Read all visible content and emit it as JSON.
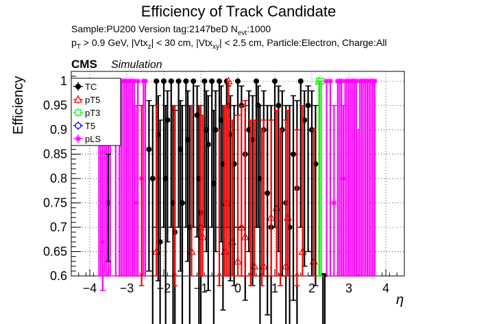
{
  "title": "Efficiency of Track Candidate",
  "subtitle": {
    "line1_main": "Sample:PU200   Version tag:2147beD  N",
    "line1_sub": "evt",
    "line1_tail": ":1000",
    "line2_p": "p",
    "line2_T": "T",
    "line2_a": " > 0.9 GeV, |Vtx",
    "line2_z": "z",
    "line2_b": "| < 30 cm, |Vtx",
    "line2_xy": "xy",
    "line2_c": "| < 2.5 cm, Particle:Electron, Charge:All"
  },
  "cms_label": "CMS",
  "sim_label": "Simulation",
  "chart_data": {
    "type": "scatter",
    "xlabel": "η",
    "ylabel": "Efficiency",
    "xlim": [
      -4.5,
      4.5
    ],
    "ylim": [
      0.6,
      1.02
    ],
    "xticks": [
      -4,
      -3,
      -2,
      -1,
      0,
      1,
      2,
      3,
      4
    ],
    "yticks": [
      0.6,
      0.65,
      0.7,
      0.75,
      0.8,
      0.85,
      0.9,
      0.95,
      1
    ],
    "grid": true,
    "legend_position": "top-left",
    "colors": {
      "TC": "#000000",
      "pT5": "#ff0000",
      "pT3": "#00ff00",
      "T5": "#0000ff",
      "pLS": "#ff00ff"
    },
    "series": [
      {
        "name": "TC",
        "marker": "filled-circle",
        "x": [
          -3.5,
          -2.4,
          -2.3,
          -2.2,
          -2.15,
          -2.1,
          -2.0,
          -1.95,
          -1.9,
          -1.8,
          -1.75,
          -1.7,
          -1.6,
          -1.55,
          -1.5,
          -1.4,
          -1.35,
          -1.3,
          -1.2,
          -1.1,
          -1.05,
          -1.0,
          -0.9,
          -0.85,
          -0.8,
          -0.7,
          -0.65,
          -0.6,
          -0.5,
          -0.45,
          -0.4,
          -0.3,
          -0.25,
          -0.2,
          -0.1,
          0.0,
          0.1,
          0.2,
          0.3,
          0.4,
          0.5,
          0.55,
          0.6,
          0.7,
          0.8,
          0.9,
          1.0,
          1.1,
          1.2,
          1.3,
          1.4,
          1.5,
          1.6,
          1.7,
          1.8,
          1.9,
          2.0,
          2.1,
          2.3,
          2.35
        ],
        "y": [
          0.75,
          0.86,
          0.8,
          1.0,
          0.89,
          0.67,
          1.0,
          0.8,
          0.92,
          1.0,
          0.75,
          0.69,
          1.0,
          0.86,
          0.75,
          1.0,
          0.88,
          0.7,
          1.0,
          0.93,
          0.8,
          0.73,
          1.0,
          0.9,
          0.87,
          1.0,
          0.79,
          0.9,
          1.0,
          0.92,
          0.83,
          1.0,
          0.95,
          0.89,
          0.83,
          1.0,
          0.95,
          0.85,
          0.9,
          0.88,
          1.0,
          0.95,
          0.8,
          0.9,
          0.77,
          0.7,
          1.0,
          0.95,
          0.9,
          0.75,
          0.7,
          0.85,
          0.78,
          1.0,
          0.92,
          0.95,
          0.9,
          0.83,
          0.6,
          0.6
        ],
        "err_lo": [
          0.12,
          0.25,
          0.3,
          0.3,
          0.3,
          0.2,
          0.3,
          0.3,
          0.25,
          0.3,
          0.3,
          0.2,
          0.3,
          0.25,
          0.3,
          0.3,
          0.25,
          0.2,
          0.3,
          0.25,
          0.3,
          0.25,
          0.3,
          0.25,
          0.3,
          0.3,
          0.3,
          0.25,
          0.3,
          0.25,
          0.3,
          0.3,
          0.25,
          0.3,
          0.25,
          0.3,
          0.25,
          0.3,
          0.25,
          0.3,
          0.3,
          0.25,
          0.3,
          0.3,
          0.25,
          0.2,
          0.3,
          0.3,
          0.3,
          0.25,
          0.2,
          0.3,
          0.3,
          0.3,
          0.3,
          0.3,
          0.3,
          0.25,
          0.1,
          0.1
        ],
        "err_hi": [
          0.1,
          0.1,
          0.15,
          0.0,
          0.08,
          0.25,
          0.0,
          0.15,
          0.06,
          0.0,
          0.2,
          0.25,
          0.0,
          0.1,
          0.2,
          0.0,
          0.1,
          0.25,
          0.0,
          0.06,
          0.15,
          0.2,
          0.0,
          0.08,
          0.1,
          0.0,
          0.15,
          0.08,
          0.0,
          0.07,
          0.12,
          0.0,
          0.04,
          0.08,
          0.12,
          0.0,
          0.04,
          0.1,
          0.08,
          0.09,
          0.0,
          0.04,
          0.15,
          0.08,
          0.18,
          0.25,
          0.0,
          0.04,
          0.08,
          0.2,
          0.25,
          0.12,
          0.18,
          0.0,
          0.06,
          0.04,
          0.08,
          0.12,
          0.0,
          0.0
        ]
      },
      {
        "name": "pT5",
        "marker": "open-triangle",
        "x": [
          -2.6,
          -2.2,
          -1.7,
          -1.25,
          -1.0,
          -0.95,
          -0.5,
          -0.35,
          -0.3,
          -0.25,
          -0.15,
          0.0,
          0.1,
          0.2,
          0.35,
          0.45,
          0.65,
          0.7,
          0.9,
          1.05,
          1.15,
          1.3,
          1.35,
          1.6,
          1.75,
          2.05,
          2.2
        ],
        "y": [
          0.6,
          0.65,
          0.6,
          0.65,
          0.7,
          0.68,
          0.6,
          0.65,
          0.75,
          1.0,
          0.67,
          0.63,
          0.7,
          0.68,
          0.6,
          0.62,
          0.6,
          0.62,
          0.72,
          0.74,
          0.6,
          0.62,
          0.72,
          0.6,
          0.65,
          0.63,
          1.0
        ],
        "err_lo": [
          0.02,
          0.05,
          0.02,
          0.05,
          0.1,
          0.08,
          0.02,
          0.05,
          0.15,
          0.4,
          0.07,
          0.03,
          0.1,
          0.08,
          0.02,
          0.02,
          0.02,
          0.02,
          0.12,
          0.14,
          0.02,
          0.02,
          0.12,
          0.02,
          0.05,
          0.03,
          0.4
        ],
        "err_hi": [
          0.35,
          0.3,
          0.35,
          0.3,
          0.25,
          0.25,
          0.3,
          0.3,
          0.2,
          0.0,
          0.25,
          0.3,
          0.25,
          0.28,
          0.32,
          0.3,
          0.3,
          0.3,
          0.2,
          0.2,
          0.3,
          0.3,
          0.22,
          0.3,
          0.3,
          0.27,
          0.0
        ]
      },
      {
        "name": "pT3",
        "marker": "open-square",
        "x": [
          2.2,
          2.25
        ],
        "y": [
          1.0,
          1.0
        ],
        "err_lo": [
          0.4,
          0.4
        ],
        "err_hi": [
          0.0,
          0.0
        ]
      },
      {
        "name": "T5",
        "marker": "open-circle",
        "x": [],
        "y": [],
        "err_lo": [],
        "err_hi": []
      },
      {
        "name": "pLS",
        "marker": "star",
        "x": [
          -3.75,
          -3.7,
          -3.65,
          -3.6,
          -3.55,
          -3.5,
          -3.45,
          -3.3,
          -3.2,
          -3.15,
          -3.1,
          -3.05,
          -3.0,
          -2.95,
          -2.9,
          -2.85,
          -2.8,
          -2.75,
          -2.7,
          -2.6,
          -2.55,
          -2.5,
          2.4,
          2.5,
          2.6,
          2.7,
          2.75,
          2.8,
          2.85,
          2.9,
          2.95,
          3.0,
          3.05,
          3.1,
          3.15,
          3.2,
          3.25,
          3.3,
          3.35,
          3.4,
          3.45,
          3.5,
          3.55,
          3.6,
          3.65,
          3.7
        ],
        "y": [
          1.0,
          1.0,
          0.67,
          1.0,
          1.0,
          1.0,
          1.0,
          1.0,
          1.0,
          1.0,
          1.0,
          1.0,
          1.0,
          1.0,
          1.0,
          1.0,
          1.0,
          0.75,
          1.0,
          0.8,
          1.0,
          1.0,
          1.0,
          1.0,
          0.75,
          1.0,
          1.0,
          1.0,
          0.8,
          1.0,
          1.0,
          1.0,
          1.0,
          1.0,
          1.0,
          1.0,
          0.6,
          1.0,
          1.0,
          1.0,
          1.0,
          1.0,
          1.0,
          1.0,
          1.0,
          1.0
        ],
        "err_lo": [
          0.4,
          0.4,
          0.1,
          0.4,
          0.4,
          0.4,
          0.4,
          0.4,
          0.4,
          0.4,
          0.4,
          0.4,
          0.4,
          0.4,
          0.4,
          0.4,
          0.4,
          0.15,
          0.4,
          0.2,
          0.4,
          0.4,
          0.4,
          0.4,
          0.15,
          0.4,
          0.4,
          0.4,
          0.2,
          0.4,
          0.4,
          0.4,
          0.4,
          0.4,
          0.4,
          0.4,
          0.0,
          0.4,
          0.4,
          0.4,
          0.4,
          0.4,
          0.4,
          0.4,
          0.4,
          0.4
        ],
        "err_hi": [
          0,
          0,
          0.25,
          0,
          0,
          0,
          0,
          0,
          0,
          0,
          0,
          0,
          0,
          0,
          0,
          0,
          0,
          0.2,
          0,
          0.15,
          0,
          0,
          0,
          0,
          0.2,
          0,
          0,
          0,
          0.15,
          0,
          0,
          0,
          0,
          0,
          0,
          0,
          0.3,
          0,
          0,
          0,
          0,
          0,
          0,
          0,
          0,
          0
        ]
      }
    ]
  }
}
